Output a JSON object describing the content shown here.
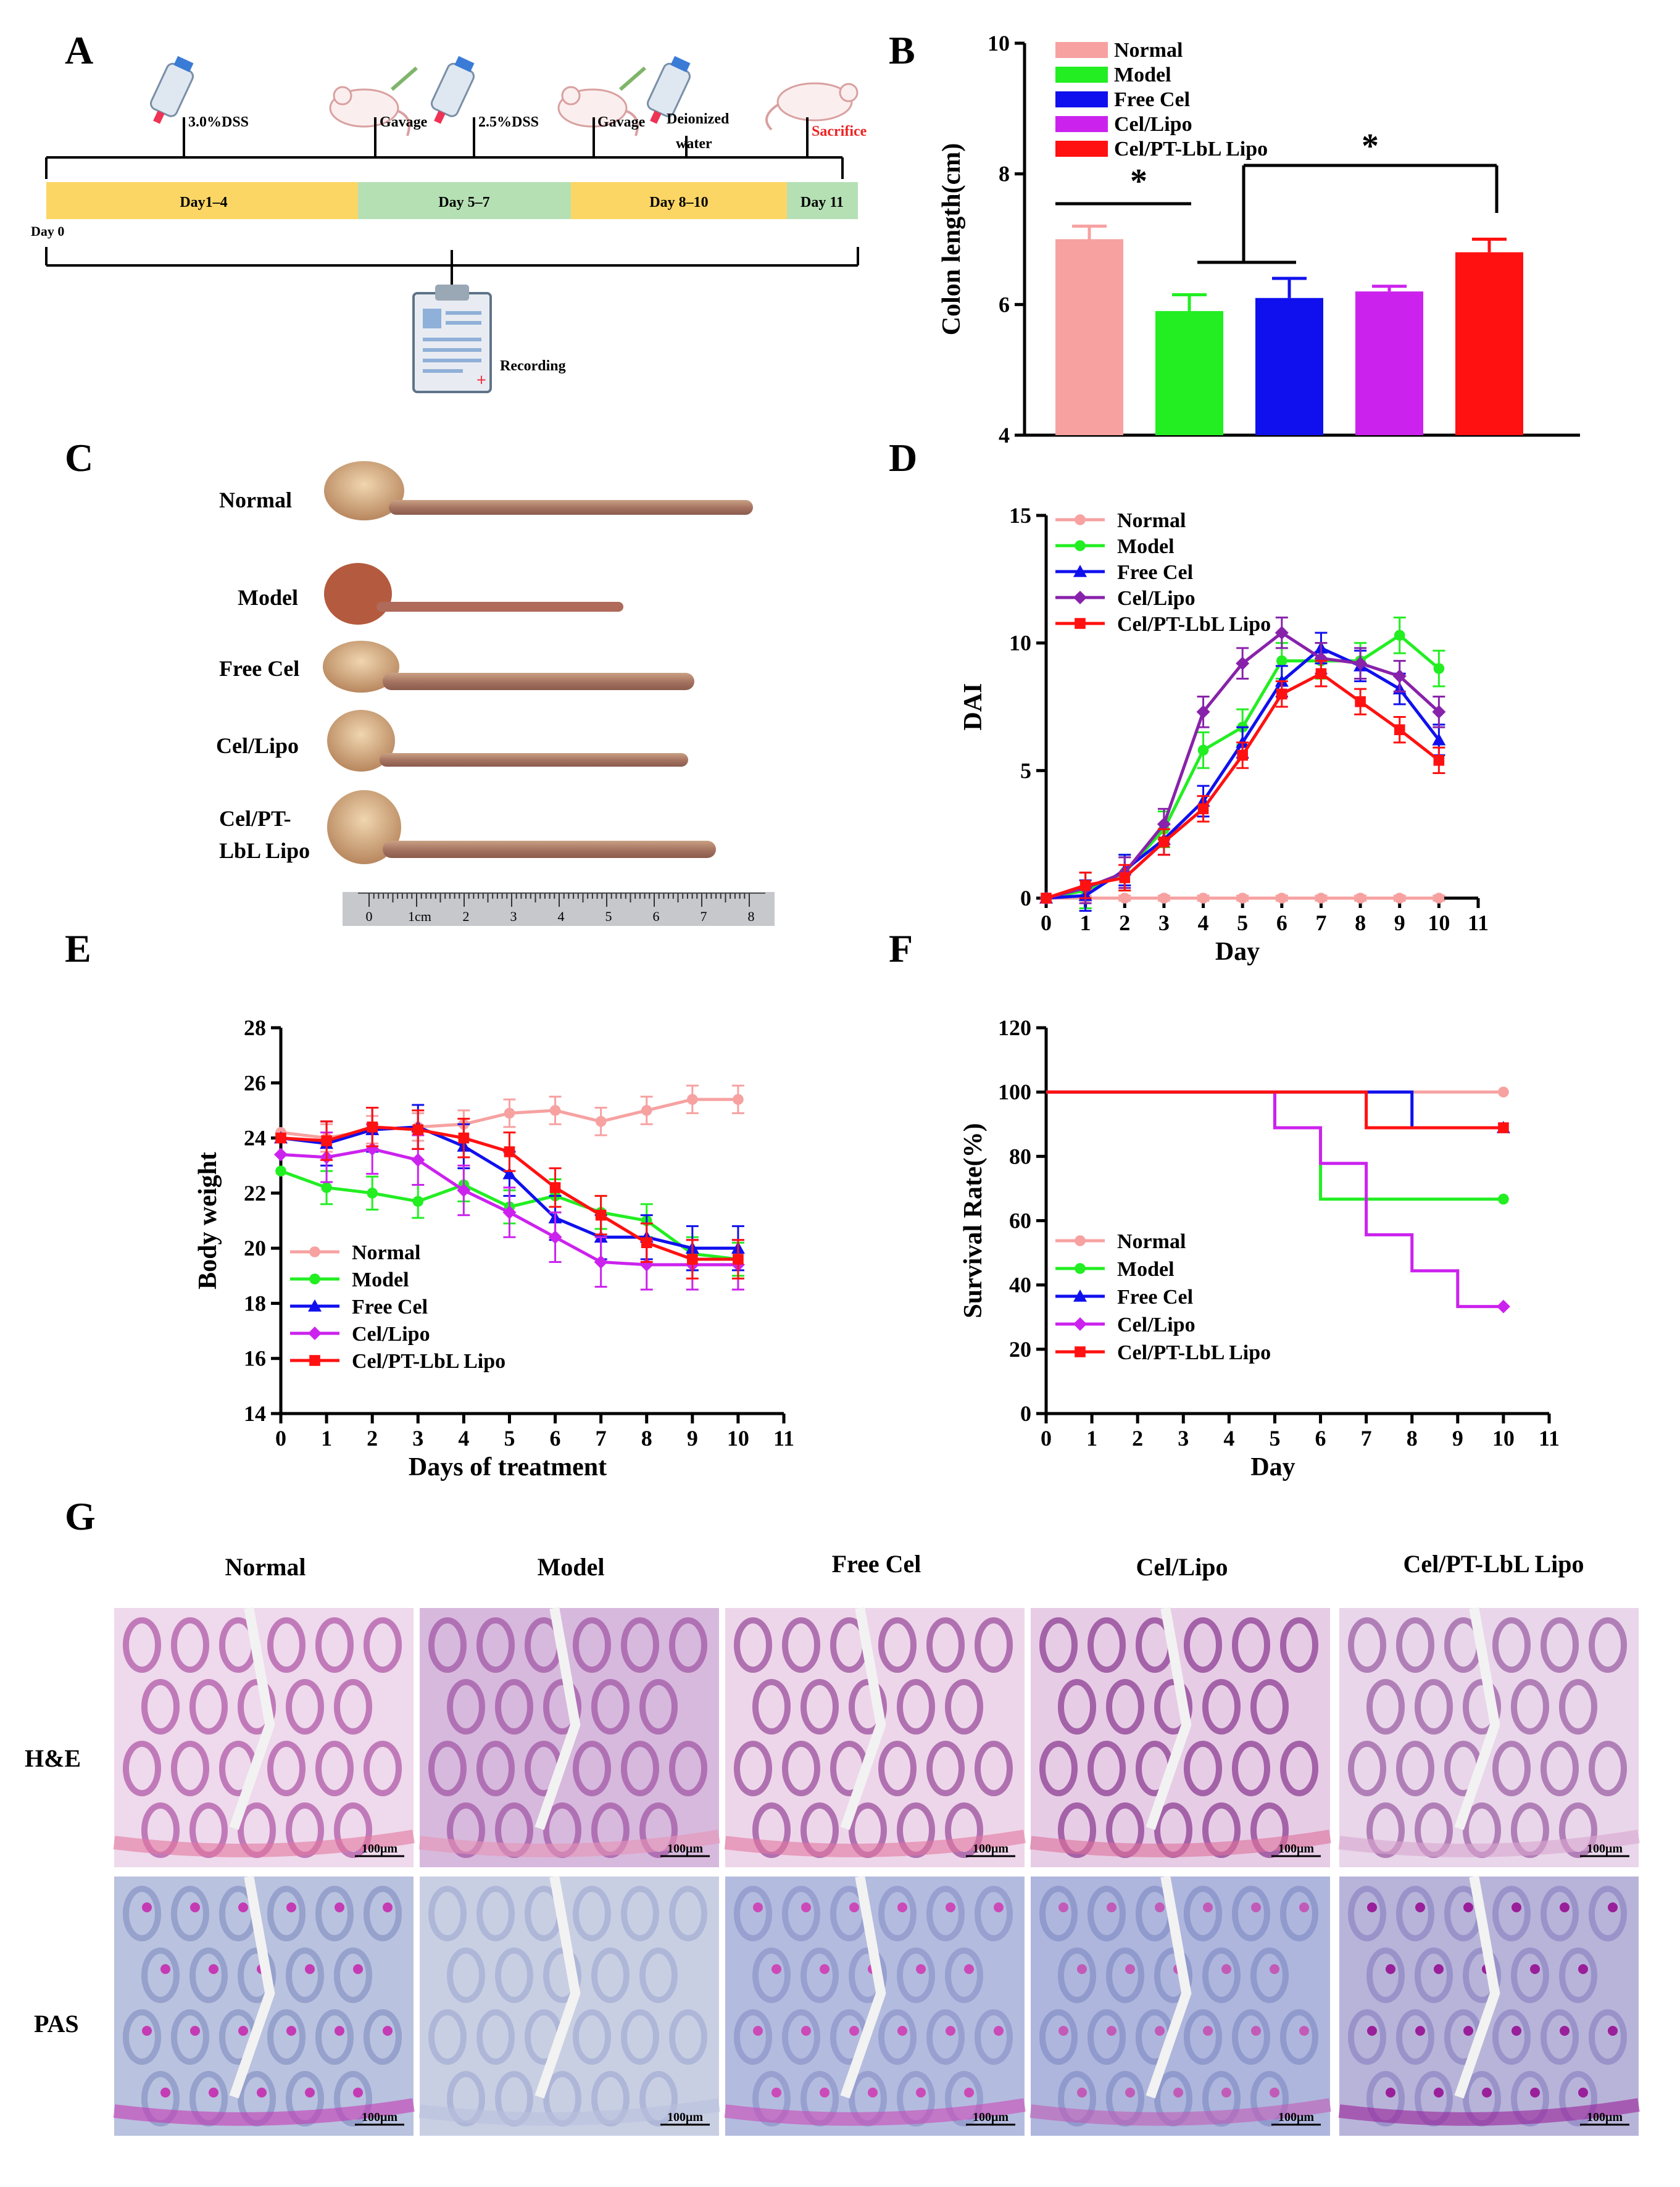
{
  "panels": {
    "a": "A",
    "b": "B",
    "c": "C",
    "d": "D",
    "e": "E",
    "f": "F",
    "g": "G"
  },
  "timeline": {
    "events": [
      "3.0%DSS",
      "Gavage",
      "2.5%DSS",
      "Gavage",
      "Deionized water",
      "Sacrifice"
    ],
    "phases": [
      "Day1–4",
      "Day 5–7",
      "Day 8–10",
      "Day 11"
    ],
    "day0": "Day 0",
    "recording": "Recording",
    "colors": {
      "phase_yellow": "#fcd664",
      "phase_green": "#b5e0b4",
      "sacrifice": "#ee2222"
    }
  },
  "photo": {
    "labels": [
      "Normal",
      "Model",
      "Free Cel",
      "Cel/Lipo",
      "Cel/PT-",
      "LbL Lipo"
    ],
    "ruler_labels": [
      "0",
      "1cm",
      "2",
      "3",
      "4",
      "5",
      "6",
      "7",
      "8"
    ]
  },
  "chart_data": [
    {
      "id": "B",
      "type": "bar",
      "categories": [
        "Normal",
        "Model",
        "Free Cel",
        "Cel/Lipo",
        "Cel/PT-LbL Lipo"
      ],
      "values": [
        7.0,
        5.9,
        6.1,
        6.2,
        6.8
      ],
      "errors": [
        0.2,
        0.25,
        0.3,
        0.08,
        0.2
      ],
      "colors": [
        "#f7a1a1",
        "#22ee22",
        "#1010ee",
        "#cc22ee",
        "#ff1111"
      ],
      "ylabel": "Colon length(cm)",
      "ylim": [
        4,
        10
      ],
      "yticks": [
        "4",
        "6",
        "8",
        "10"
      ],
      "legend": [
        "Normal",
        "Model",
        "Free Cel",
        "Cel/Lipo",
        "Cel/PT-LbL Lipo"
      ],
      "annotations": [
        "*",
        "*"
      ]
    },
    {
      "id": "D",
      "type": "line",
      "xlabel": "Day",
      "ylabel": "DAI",
      "xlim": [
        0,
        11
      ],
      "ylim": [
        0,
        15
      ],
      "xticks": [
        "0",
        "1",
        "2",
        "3",
        "4",
        "5",
        "6",
        "7",
        "8",
        "9",
        "10",
        "11"
      ],
      "yticks": [
        "0",
        "5",
        "10",
        "15"
      ],
      "x": [
        0,
        1,
        2,
        3,
        4,
        5,
        6,
        7,
        8,
        9,
        10
      ],
      "series": [
        {
          "name": "Normal",
          "color": "#f7a1a1",
          "values": [
            0,
            0,
            0,
            0,
            0,
            0,
            0,
            0,
            0,
            0,
            0
          ],
          "err": 0.1
        },
        {
          "name": "Model",
          "color": "#22ee22",
          "values": [
            0,
            0.3,
            1.0,
            2.7,
            5.8,
            6.7,
            9.3,
            9.3,
            9.3,
            10.3,
            9.0
          ],
          "err": 0.7
        },
        {
          "name": "Free Cel",
          "color": "#1010ee",
          "values": [
            0,
            0.1,
            1.1,
            2.3,
            3.8,
            6.1,
            8.5,
            9.8,
            9.1,
            8.2,
            6.2
          ],
          "err": 0.6
        },
        {
          "name": "Cel/Lipo",
          "color": "#8822aa",
          "values": [
            0,
            0.4,
            1.0,
            2.9,
            7.3,
            9.2,
            10.4,
            9.4,
            9.2,
            8.7,
            7.3
          ],
          "err": 0.6
        },
        {
          "name": "Cel/PT-LbL Lipo",
          "color": "#ff1111",
          "values": [
            0,
            0.5,
            0.8,
            2.2,
            3.5,
            5.6,
            8.0,
            8.8,
            7.7,
            6.6,
            5.4
          ],
          "err": 0.5
        }
      ]
    },
    {
      "id": "E",
      "type": "line",
      "xlabel": "Days of treatment",
      "ylabel": "Body weight",
      "xlim": [
        0,
        11
      ],
      "ylim": [
        14,
        28
      ],
      "xticks": [
        "0",
        "1",
        "2",
        "3",
        "4",
        "5",
        "6",
        "7",
        "8",
        "9",
        "10",
        "11"
      ],
      "yticks": [
        "14",
        "16",
        "18",
        "20",
        "22",
        "24",
        "26",
        "28"
      ],
      "x": [
        0,
        1,
        2,
        3,
        4,
        5,
        6,
        7,
        8,
        9,
        10
      ],
      "series": [
        {
          "name": "Normal",
          "color": "#f7a1a1",
          "values": [
            24.2,
            24.0,
            24.3,
            24.4,
            24.5,
            24.9,
            25.0,
            24.6,
            25.0,
            25.4,
            25.4
          ],
          "err": 0.5
        },
        {
          "name": "Model",
          "color": "#22ee22",
          "values": [
            22.8,
            22.2,
            22.0,
            21.7,
            22.3,
            21.5,
            21.9,
            21.3,
            21.0,
            19.8,
            19.6
          ],
          "err": 0.6
        },
        {
          "name": "Free Cel",
          "color": "#1010ee",
          "values": [
            24.0,
            23.8,
            24.3,
            24.4,
            23.7,
            22.7,
            21.1,
            20.4,
            20.4,
            20.0,
            20.0
          ],
          "err": 0.8
        },
        {
          "name": "Cel/Lipo",
          "color": "#cc22ee",
          "values": [
            23.4,
            23.3,
            23.6,
            23.2,
            22.1,
            21.3,
            20.4,
            19.5,
            19.4,
            19.4,
            19.4
          ],
          "err": 0.9
        },
        {
          "name": "Cel/PT-LbL Lipo",
          "color": "#ff1111",
          "values": [
            24.0,
            23.9,
            24.4,
            24.3,
            24.0,
            23.5,
            22.2,
            21.2,
            20.2,
            19.6,
            19.6
          ],
          "err": 0.7
        }
      ]
    },
    {
      "id": "F",
      "type": "line",
      "step": true,
      "xlabel": "Day",
      "ylabel": "Survival Rate(%)",
      "xlim": [
        0,
        11
      ],
      "ylim": [
        0,
        120
      ],
      "xticks": [
        "0",
        "1",
        "2",
        "3",
        "4",
        "5",
        "6",
        "7",
        "8",
        "9",
        "10",
        "11"
      ],
      "yticks": [
        "0",
        "20",
        "40",
        "60",
        "80",
        "100",
        "120"
      ],
      "series": [
        {
          "name": "Normal",
          "color": "#f7a1a1",
          "points": [
            [
              0,
              100
            ],
            [
              10,
              100
            ]
          ]
        },
        {
          "name": "Model",
          "color": "#22ee22",
          "points": [
            [
              0,
              100
            ],
            [
              5,
              100
            ],
            [
              5,
              88.9
            ],
            [
              6,
              88.9
            ],
            [
              6,
              66.7
            ],
            [
              10,
              66.7
            ]
          ]
        },
        {
          "name": "Free Cel",
          "color": "#1010ee",
          "points": [
            [
              0,
              100
            ],
            [
              8,
              100
            ],
            [
              8,
              88.9
            ],
            [
              10,
              88.9
            ]
          ]
        },
        {
          "name": "Cel/Lipo",
          "color": "#cc22ee",
          "points": [
            [
              0,
              100
            ],
            [
              5,
              100
            ],
            [
              5,
              88.9
            ],
            [
              6,
              88.9
            ],
            [
              6,
              77.8
            ],
            [
              7,
              77.8
            ],
            [
              7,
              55.6
            ],
            [
              8,
              55.6
            ],
            [
              8,
              44.4
            ],
            [
              9,
              44.4
            ],
            [
              9,
              33.3
            ],
            [
              10,
              33.3
            ]
          ]
        },
        {
          "name": "Cel/PT-LbL Lipo",
          "color": "#ff1111",
          "points": [
            [
              0,
              100
            ],
            [
              7,
              100
            ],
            [
              7,
              88.9
            ],
            [
              10,
              88.9
            ]
          ]
        }
      ]
    }
  ],
  "histology": {
    "columns": [
      "Normal",
      "Model",
      "Free Cel",
      "Cel/Lipo",
      "Cel/PT-LbL Lipo"
    ],
    "rows": [
      "H&E",
      "PAS"
    ],
    "scale": "100μm"
  }
}
